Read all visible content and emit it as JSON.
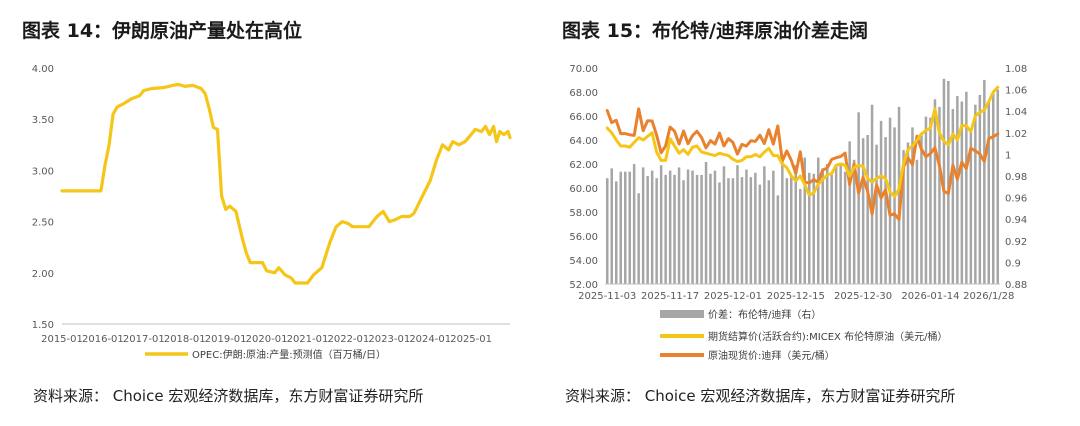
{
  "left": {
    "title": "图表 14：伊朗原油产量处在高位",
    "source": "资料来源： Choice 宏观经济数据库，东方财富证券研究所",
    "chart_data": {
      "type": "line",
      "x_ticks": [
        "2015-01",
        "2016-01",
        "2017-01",
        "2018-01",
        "2019-01",
        "2020-01",
        "2021-01",
        "2022-01",
        "2023-01",
        "2024-01",
        "2025-01"
      ],
      "y_ticks": [
        "1.50",
        "2.00",
        "2.50",
        "3.00",
        "3.50",
        "4.00"
      ],
      "ylim": [
        1.5,
        4.0
      ],
      "xlim": [
        2015.0,
        2025.95
      ],
      "series": [
        {
          "name": "OPEC:伊朗:原油:产量:预测值（百万桶/日）",
          "color": "#F5C518",
          "points": [
            [
              2015.0,
              2.8
            ],
            [
              2015.5,
              2.8
            ],
            [
              2015.95,
              2.8
            ],
            [
              2016.05,
              3.05
            ],
            [
              2016.15,
              3.25
            ],
            [
              2016.25,
              3.55
            ],
            [
              2016.35,
              3.62
            ],
            [
              2016.5,
              3.65
            ],
            [
              2016.7,
              3.7
            ],
            [
              2016.9,
              3.73
            ],
            [
              2017.0,
              3.78
            ],
            [
              2017.2,
              3.8
            ],
            [
              2017.5,
              3.81
            ],
            [
              2017.7,
              3.83
            ],
            [
              2017.85,
              3.84
            ],
            [
              2018.0,
              3.82
            ],
            [
              2018.2,
              3.83
            ],
            [
              2018.4,
              3.8
            ],
            [
              2018.5,
              3.75
            ],
            [
              2018.6,
              3.6
            ],
            [
              2018.7,
              3.42
            ],
            [
              2018.8,
              3.4
            ],
            [
              2018.9,
              2.75
            ],
            [
              2019.0,
              2.62
            ],
            [
              2019.1,
              2.65
            ],
            [
              2019.25,
              2.6
            ],
            [
              2019.4,
              2.35
            ],
            [
              2019.5,
              2.2
            ],
            [
              2019.6,
              2.1
            ],
            [
              2019.9,
              2.1
            ],
            [
              2020.0,
              2.02
            ],
            [
              2020.2,
              2.0
            ],
            [
              2020.3,
              2.05
            ],
            [
              2020.45,
              1.98
            ],
            [
              2020.6,
              1.95
            ],
            [
              2020.7,
              1.9
            ],
            [
              2021.0,
              1.9
            ],
            [
              2021.15,
              1.98
            ],
            [
              2021.35,
              2.05
            ],
            [
              2021.55,
              2.3
            ],
            [
              2021.7,
              2.45
            ],
            [
              2021.85,
              2.5
            ],
            [
              2022.0,
              2.48
            ],
            [
              2022.1,
              2.45
            ],
            [
              2022.3,
              2.45
            ],
            [
              2022.5,
              2.45
            ],
            [
              2022.7,
              2.55
            ],
            [
              2022.85,
              2.6
            ],
            [
              2023.0,
              2.5
            ],
            [
              2023.15,
              2.52
            ],
            [
              2023.3,
              2.55
            ],
            [
              2023.5,
              2.55
            ],
            [
              2023.6,
              2.58
            ],
            [
              2023.75,
              2.7
            ],
            [
              2024.0,
              2.9
            ],
            [
              2024.15,
              3.1
            ],
            [
              2024.3,
              3.25
            ],
            [
              2024.45,
              3.2
            ],
            [
              2024.55,
              3.28
            ],
            [
              2024.7,
              3.25
            ],
            [
              2024.85,
              3.28
            ],
            [
              2025.0,
              3.35
            ],
            [
              2025.1,
              3.4
            ],
            [
              2025.25,
              3.38
            ],
            [
              2025.35,
              3.43
            ],
            [
              2025.45,
              3.35
            ],
            [
              2025.55,
              3.43
            ],
            [
              2025.62,
              3.28
            ],
            [
              2025.7,
              3.38
            ],
            [
              2025.8,
              3.35
            ],
            [
              2025.9,
              3.38
            ],
            [
              2025.95,
              3.32
            ]
          ]
        }
      ]
    }
  },
  "right": {
    "title": "图表 15：布伦特/迪拜原油价差走阔",
    "source": "资料来源： Choice 宏观经济数据库，东方财富证券研究所",
    "chart_data": {
      "type": "bar+line",
      "x_ticks": [
        "2025-11-03",
        "2025-11-17",
        "2025-12-01",
        "2025-12-15",
        "2025-12-30",
        "2026-01-14",
        "2026/1/28"
      ],
      "y_left_ticks": [
        "52.00",
        "54.00",
        "56.00",
        "58.00",
        "60.00",
        "62.00",
        "64.00",
        "66.00",
        "68.00",
        "70.00"
      ],
      "y_right_ticks": [
        "0.88",
        "0.9",
        "0.92",
        "0.94",
        "0.96",
        "0.98",
        "1",
        "1.02",
        "1.04",
        "1.06",
        "1.08"
      ],
      "ylim_left": [
        52,
        70
      ],
      "ylim_right": [
        0.88,
        1.08
      ],
      "n_days": 88,
      "legend_labels": [
        "价差：布伦特/迪拜（右）",
        "期货结算价(活跃合约):MICEX 布伦特原油（美元/桶）",
        "原油现货价:迪拜（美元/桶）"
      ],
      "colors": {
        "bars": "#A6A6A6",
        "brent": "#F5C518",
        "dubai": "#E8822E"
      },
      "spread_bars": [
        0.978,
        0.987,
        0.975,
        0.984,
        0.984,
        0.984,
        0.991,
        0.964,
        0.988,
        0.98,
        0.985,
        0.978,
        0.99,
        0.981,
        0.985,
        0.981,
        0.988,
        0.976,
        0.986,
        0.985,
        0.981,
        0.981,
        0.993,
        0.982,
        0.985,
        0.974,
        0.989,
        0.978,
        0.978,
        0.99,
        0.979,
        0.986,
        0.979,
        0.983,
        0.972,
        0.989,
        0.976,
        0.985,
        0.962,
        0.996,
        0.978,
        0.979,
        0.99,
        0.968,
        0.997,
        0.983,
        0.982,
        0.997,
        0.987,
        0.991,
        0.981,
        0.99,
        0.99,
        0.984,
        1.012,
        0.995,
        1.039,
        1.015,
        1.018,
        1.046,
        1.009,
        1.031,
        1.016,
        1.034,
        1.025,
        1.044,
        1.004,
        1.011,
        1.025,
        0.995,
        1.02,
        1.035,
        1.034,
        1.051,
        1.044,
        1.07,
        1.068,
        1.042,
        1.054,
        1.049,
        1.058,
        1.022,
        1.046,
        1.055,
        1.069,
        1.048,
        1.058,
        1.06
      ],
      "brent": [
        65.0,
        64.6,
        64.0,
        63.5,
        63.5,
        63.4,
        63.8,
        64.2,
        64.0,
        64.3,
        64.6,
        63.0,
        62.3,
        62.3,
        64.1,
        63.5,
        62.9,
        63.2,
        62.8,
        63.4,
        63.5,
        63.0,
        62.9,
        62.8,
        62.7,
        62.9,
        62.8,
        62.7,
        62.4,
        62.2,
        62.3,
        62.6,
        62.6,
        62.8,
        62.6,
        63.0,
        63.3,
        62.7,
        62.7,
        62.0,
        61.7,
        61.0,
        60.6,
        61.0,
        60.3,
        59.4,
        59.6,
        60.3,
        60.7,
        61.1,
        61.2,
        61.9,
        62.0,
        61.9,
        61.0,
        61.7,
        61.9,
        61.8,
        60.8,
        60.5,
        60.8,
        61.0,
        60.8,
        59.7,
        59.3,
        59.9,
        62.0,
        63.2,
        63.5,
        64.0,
        64.5,
        64.8,
        65.0,
        66.6,
        64.6,
        63.9,
        63.6,
        64.5,
        64.0,
        65.2,
        65.2,
        64.7,
        66.0,
        66.3,
        66.5,
        67.2,
        68.0,
        68.4
      ]
    }
  }
}
